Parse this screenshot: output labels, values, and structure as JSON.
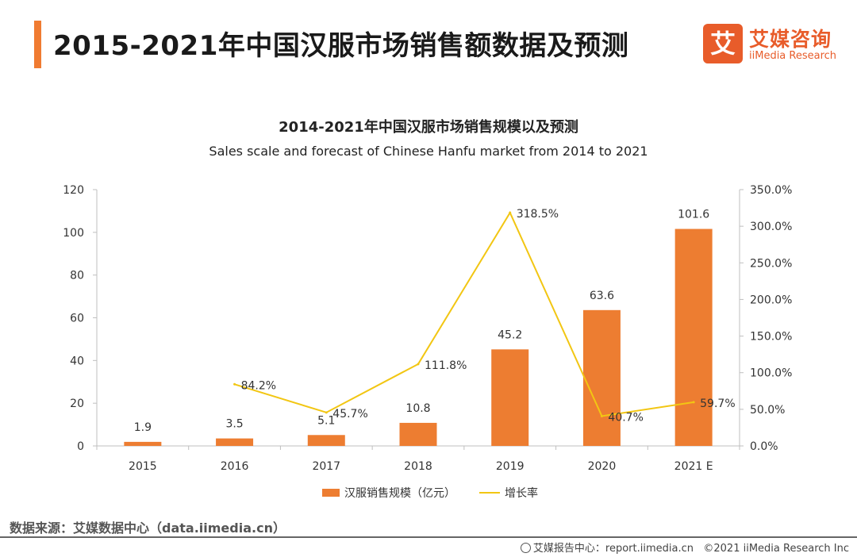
{
  "header": {
    "title": "2015-2021年中国汉服市场销售额数据及预测",
    "brand_mark": "艾",
    "brand_cn": "艾媒咨询",
    "brand_en": "iiMedia Research"
  },
  "chart_data": {
    "type": "bar",
    "title": "2014-2021年中国汉服市场销售规模以及预测",
    "subtitle": "Sales scale and forecast of Chinese Hanfu market from 2014 to 2021",
    "categories": [
      "2015",
      "2016",
      "2017",
      "2018",
      "2019",
      "2020",
      "2021 E"
    ],
    "series": [
      {
        "name": "汉服销售规模（亿元）",
        "type": "bar",
        "axis": "left",
        "color": "#ed7d31",
        "values": [
          1.9,
          3.5,
          5.1,
          10.8,
          45.2,
          63.6,
          101.6
        ],
        "labels": [
          "1.9",
          "3.5",
          "5.1",
          "10.8",
          "45.2",
          "63.6",
          "101.6"
        ]
      },
      {
        "name": "增长率",
        "type": "line",
        "axis": "right",
        "color": "#f2c613",
        "x": [
          "2016",
          "2017",
          "2018",
          "2019",
          "2020",
          "2021 E"
        ],
        "values": [
          84.2,
          45.7,
          111.8,
          318.5,
          40.7,
          59.7
        ],
        "labels": [
          "84.2%",
          "45.7%",
          "111.8%",
          "318.5%",
          "40.7%",
          "59.7%"
        ]
      }
    ],
    "y_left": {
      "range": [
        0,
        120
      ],
      "ticks": [
        "0",
        "20",
        "40",
        "60",
        "80",
        "100",
        "120"
      ]
    },
    "y_right": {
      "range": [
        0,
        350
      ],
      "ticks": [
        "0.0%",
        "50.0%",
        "100.0%",
        "150.0%",
        "200.0%",
        "250.0%",
        "300.0%",
        "350.0%"
      ]
    },
    "legend_position": "bottom",
    "grid": false
  },
  "footer": {
    "source": "数据来源：艾媒数据中心（data.iimedia.cn）",
    "report": "艾媒报告中心：report.iimedia.cn",
    "copyright": "©2021  iiMedia Research  Inc"
  }
}
